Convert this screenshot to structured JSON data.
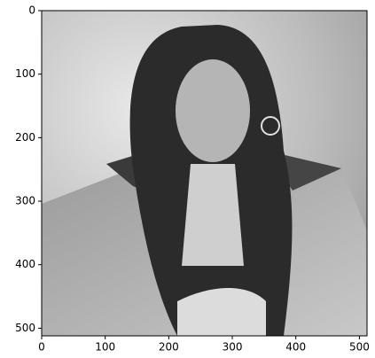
{
  "chart_data": {
    "type": "image",
    "xlim": [
      0,
      512
    ],
    "ylim": [
      512,
      0
    ],
    "xticks": [
      0,
      100,
      200,
      300,
      400,
      500
    ],
    "yticks": [
      0,
      100,
      200,
      300,
      400,
      500
    ]
  }
}
